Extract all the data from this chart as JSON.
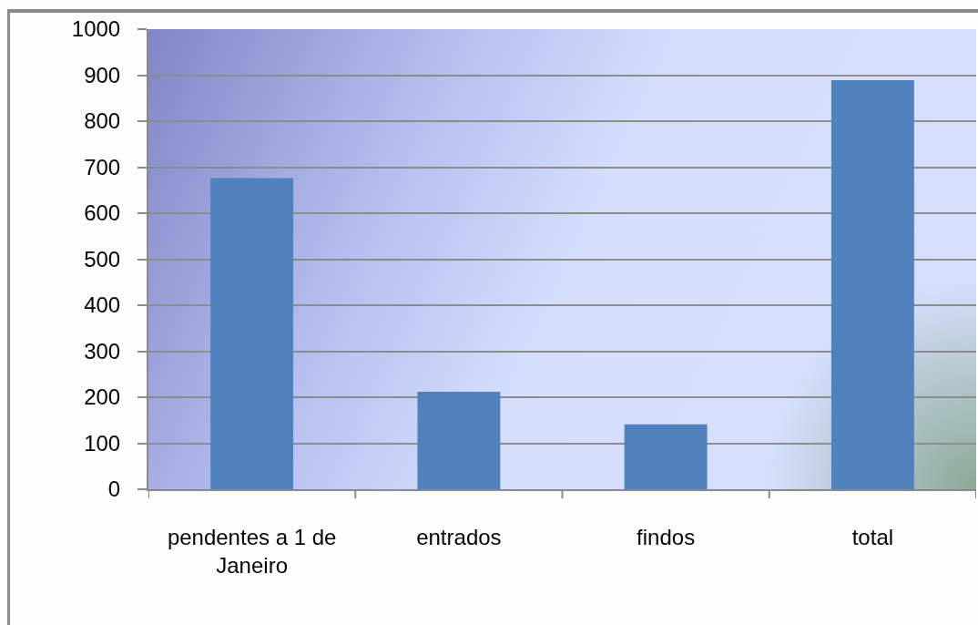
{
  "chart_data": {
    "type": "bar",
    "categories": [
      "pendentes a 1 de Janeiro",
      "entrados",
      "findos",
      "total"
    ],
    "values": [
      676,
      212,
      141,
      889
    ],
    "color": "#4f81bd",
    "ylim": [
      0,
      1000
    ],
    "yticks": [
      0,
      100,
      200,
      300,
      400,
      500,
      600,
      700,
      800,
      900,
      1000
    ],
    "grid": "y"
  }
}
